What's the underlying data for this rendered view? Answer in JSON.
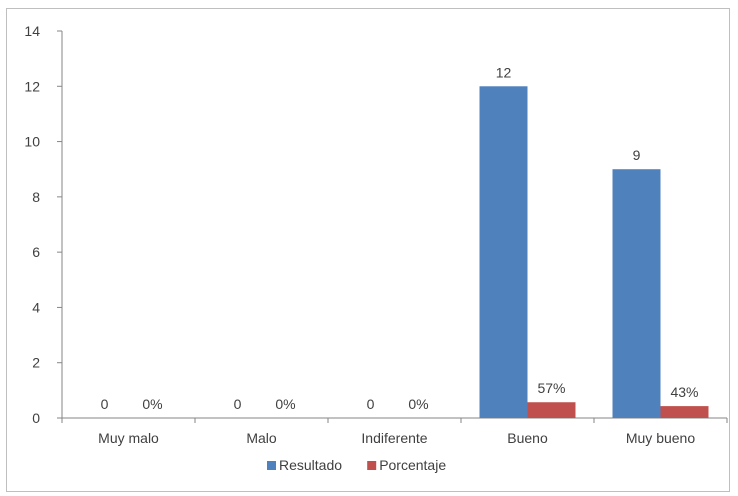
{
  "chart_data": {
    "type": "bar",
    "categories": [
      "Muy malo",
      "Malo",
      "Indiferente",
      "Bueno",
      "Muy bueno"
    ],
    "series": [
      {
        "name": "Resultado",
        "values": [
          0,
          0,
          0,
          12,
          9
        ],
        "labels": [
          "0",
          "0",
          "0",
          "12",
          "9"
        ],
        "color": "#4f81bd"
      },
      {
        "name": "Porcentaje",
        "values": [
          0,
          0,
          0,
          0.57,
          0.43
        ],
        "labels": [
          "0%",
          "0%",
          "0%",
          "57%",
          "43%"
        ],
        "color": "#c0504d"
      }
    ],
    "ylim": [
      0,
      14
    ],
    "yticks": [
      0,
      2,
      4,
      6,
      8,
      10,
      12,
      14
    ],
    "title": "",
    "xlabel": "",
    "ylabel": "",
    "grid": false,
    "legend_position": "bottom"
  }
}
